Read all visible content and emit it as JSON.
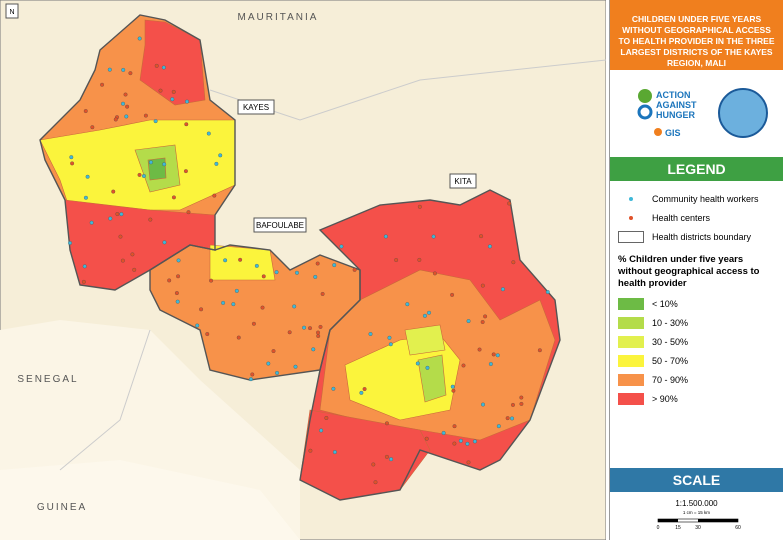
{
  "map": {
    "countries": [
      "MAURITANIA",
      "SENEGAL",
      "GUINEA"
    ],
    "districts": [
      "KAYES",
      "BAFOULABE",
      "KITA"
    ],
    "north": "N"
  },
  "panel": {
    "title": "CHILDREN UNDER FIVE YEARS WITHOUT GEOGRAPHICAL ACCESS TO HEALTH PROVIDER IN THE THREE LARGEST DISTRICTS OF THE KAYES REGION, MALI",
    "logo": {
      "line1": "ACTION",
      "line2": "AGAINST",
      "line3": "HUNGER",
      "gis": "GIS"
    },
    "legend_title": "LEGEND",
    "symbols": [
      {
        "label": "Community health workers",
        "color": "#3fb8d8"
      },
      {
        "label": "Health centers",
        "color": "#e0522a"
      },
      {
        "label": "Health districts boundary",
        "color": "#666666"
      }
    ],
    "classes_title": "% Children under five years without geographical access to health provider",
    "classes": [
      {
        "label": "< 10%",
        "color": "#6dbb45"
      },
      {
        "label": "10 - 30%",
        "color": "#b4dc4a"
      },
      {
        "label": "30 - 50%",
        "color": "#e2f04e"
      },
      {
        "label": "50 - 70%",
        "color": "#fbf43c"
      },
      {
        "label": "70 - 90%",
        "color": "#f7924a"
      },
      {
        "label": "> 90%",
        "color": "#f4504a"
      }
    ],
    "scale_title": "SCALE",
    "scale_ratio": "1:1.500.000",
    "scale_note": "1 cm = 15 km",
    "scale_ticks": [
      "0",
      "15",
      "30",
      "60"
    ]
  }
}
